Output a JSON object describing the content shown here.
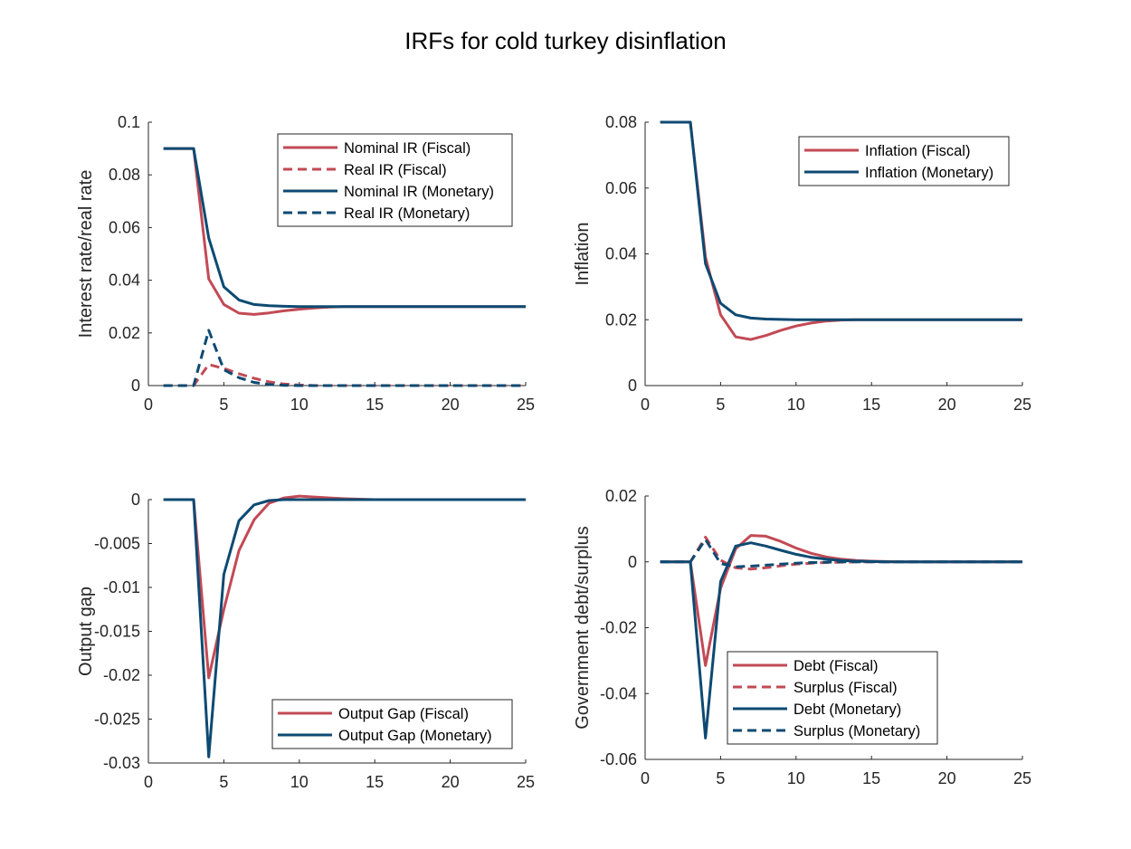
{
  "title": "IRFs for cold turkey disinflation",
  "colors": {
    "fiscal": "#c24a55",
    "monetary": "#0d4a72",
    "axis": "#262626",
    "background": "#ffffff"
  },
  "chart_data": [
    {
      "type": "line",
      "ylabel": "Interest rate/real rate",
      "xlim": [
        0,
        25
      ],
      "ylim": [
        0,
        0.1
      ],
      "xticks": [
        0,
        5,
        10,
        15,
        20,
        25
      ],
      "yticks": [
        0,
        0.02,
        0.04,
        0.06,
        0.08,
        0.1
      ],
      "ytick_labels": [
        "0",
        "0.02",
        "0.04",
        "0.06",
        "0.08",
        "0.1"
      ],
      "grid": false,
      "legend": "top-right",
      "x": [
        1,
        2,
        3,
        4,
        5,
        6,
        7,
        8,
        9,
        10,
        11,
        12,
        13,
        14,
        15,
        16,
        17,
        18,
        19,
        20,
        21,
        22,
        23,
        24,
        25
      ],
      "series": [
        {
          "name": "Nominal IR (Fiscal)",
          "color": "fiscal",
          "dash": false,
          "values": [
            0.09,
            0.09,
            0.09,
            0.0405,
            0.0308,
            0.0275,
            0.027,
            0.0276,
            0.0284,
            0.029,
            0.0295,
            0.0298,
            0.03,
            0.03,
            0.03,
            0.03,
            0.03,
            0.03,
            0.03,
            0.03,
            0.03,
            0.03,
            0.03,
            0.03,
            0.03
          ]
        },
        {
          "name": "Real IR (Fiscal)",
          "color": "fiscal",
          "dash": true,
          "values": [
            0,
            0,
            0,
            0.008,
            0.0065,
            0.0045,
            0.0028,
            0.0014,
            0.0006,
            0.0002,
            0,
            0,
            0,
            0,
            0,
            0,
            0,
            0,
            0,
            0,
            0,
            0,
            0,
            0,
            0
          ]
        },
        {
          "name": "Nominal IR (Monetary)",
          "color": "monetary",
          "dash": false,
          "values": [
            0.09,
            0.09,
            0.09,
            0.056,
            0.0375,
            0.0325,
            0.0308,
            0.0303,
            0.0301,
            0.03,
            0.03,
            0.03,
            0.03,
            0.03,
            0.03,
            0.03,
            0.03,
            0.03,
            0.03,
            0.03,
            0.03,
            0.03,
            0.03,
            0.03,
            0.03
          ]
        },
        {
          "name": "Real IR (Monetary)",
          "color": "monetary",
          "dash": true,
          "values": [
            0,
            0,
            0,
            0.021,
            0.006,
            0.003,
            0.0012,
            0.0004,
            0.0001,
            0,
            0,
            0,
            0,
            0,
            0,
            0,
            0,
            0,
            0,
            0,
            0,
            0,
            0,
            0,
            0
          ]
        }
      ]
    },
    {
      "type": "line",
      "ylabel": "Inflation",
      "xlim": [
        0,
        25
      ],
      "ylim": [
        0,
        0.08
      ],
      "xticks": [
        0,
        5,
        10,
        15,
        20,
        25
      ],
      "yticks": [
        0,
        0.02,
        0.04,
        0.06,
        0.08
      ],
      "ytick_labels": [
        "0",
        "0.02",
        "0.04",
        "0.06",
        "0.08"
      ],
      "grid": false,
      "legend": "top-right",
      "x": [
        1,
        2,
        3,
        4,
        5,
        6,
        7,
        8,
        9,
        10,
        11,
        12,
        13,
        14,
        15,
        16,
        17,
        18,
        19,
        20,
        21,
        22,
        23,
        24,
        25
      ],
      "series": [
        {
          "name": "Inflation (Fiscal)",
          "color": "fiscal",
          "dash": false,
          "values": [
            0.08,
            0.08,
            0.08,
            0.039,
            0.0215,
            0.0148,
            0.014,
            0.0152,
            0.0168,
            0.0181,
            0.019,
            0.0196,
            0.0199,
            0.02,
            0.02,
            0.02,
            0.02,
            0.02,
            0.02,
            0.02,
            0.02,
            0.02,
            0.02,
            0.02,
            0.02
          ]
        },
        {
          "name": "Inflation (Monetary)",
          "color": "monetary",
          "dash": false,
          "values": [
            0.08,
            0.08,
            0.08,
            0.037,
            0.025,
            0.0215,
            0.0205,
            0.0202,
            0.0201,
            0.02,
            0.02,
            0.02,
            0.02,
            0.02,
            0.02,
            0.02,
            0.02,
            0.02,
            0.02,
            0.02,
            0.02,
            0.02,
            0.02,
            0.02,
            0.02
          ]
        }
      ]
    },
    {
      "type": "line",
      "ylabel": "Output gap",
      "xlim": [
        0,
        25
      ],
      "ylim": [
        -0.03,
        0
      ],
      "xticks": [
        0,
        5,
        10,
        15,
        20,
        25
      ],
      "yticks": [
        -0.03,
        -0.025,
        -0.02,
        -0.015,
        -0.01,
        -0.005,
        0
      ],
      "ytick_labels": [
        "-0.03",
        "-0.025",
        "-0.02",
        "-0.015",
        "-0.01",
        "-0.005",
        "0"
      ],
      "grid": false,
      "legend": "bottom-right",
      "x": [
        1,
        2,
        3,
        4,
        5,
        6,
        7,
        8,
        9,
        10,
        11,
        12,
        13,
        14,
        15,
        16,
        17,
        18,
        19,
        20,
        21,
        22,
        23,
        24,
        25
      ],
      "series": [
        {
          "name": "Output Gap (Fiscal)",
          "color": "fiscal",
          "dash": false,
          "values": [
            0,
            0,
            0,
            -0.0203,
            -0.0125,
            -0.0058,
            -0.0023,
            -0.0004,
            0.0002,
            0.0004,
            0.0003,
            0.0002,
            0.0001,
            5e-05,
            0,
            0,
            0,
            0,
            0,
            0,
            0,
            0,
            0,
            0,
            0
          ]
        },
        {
          "name": "Output Gap (Monetary)",
          "color": "monetary",
          "dash": false,
          "values": [
            0,
            0,
            0,
            -0.0293,
            -0.0085,
            -0.0024,
            -0.0006,
            -0.0001,
            0,
            0,
            0,
            0,
            0,
            0,
            0,
            0,
            0,
            0,
            0,
            0,
            0,
            0,
            0,
            0,
            0
          ]
        }
      ]
    },
    {
      "type": "line",
      "ylabel": "Government debt/surplus",
      "xlim": [
        0,
        25
      ],
      "ylim": [
        -0.06,
        0.02
      ],
      "xticks": [
        0,
        5,
        10,
        15,
        20,
        25
      ],
      "yticks": [
        -0.06,
        -0.04,
        -0.02,
        0,
        0.02
      ],
      "ytick_labels": [
        "-0.06",
        "-0.04",
        "-0.02",
        "0",
        "0.02"
      ],
      "grid": false,
      "legend": "bottom-right",
      "x": [
        1,
        2,
        3,
        4,
        5,
        6,
        7,
        8,
        9,
        10,
        11,
        12,
        13,
        14,
        15,
        16,
        17,
        18,
        19,
        20,
        21,
        22,
        23,
        24,
        25
      ],
      "series": [
        {
          "name": "Debt (Fiscal)",
          "color": "fiscal",
          "dash": false,
          "values": [
            0,
            0,
            0,
            -0.0315,
            -0.008,
            0.004,
            0.008,
            0.0078,
            0.0062,
            0.0042,
            0.0026,
            0.0015,
            0.0008,
            0.0004,
            0.0002,
            0.0001,
            0,
            0,
            0,
            0,
            0,
            0,
            0,
            0,
            0
          ]
        },
        {
          "name": "Surplus (Fiscal)",
          "color": "fiscal",
          "dash": true,
          "values": [
            0,
            0,
            0,
            0.0075,
            0.0005,
            -0.0018,
            -0.0022,
            -0.0018,
            -0.0012,
            -0.0007,
            -0.0004,
            -0.0002,
            -0.0001,
            0,
            0,
            0,
            0,
            0,
            0,
            0,
            0,
            0,
            0,
            0,
            0
          ]
        },
        {
          "name": "Debt (Monetary)",
          "color": "monetary",
          "dash": false,
          "values": [
            0,
            0,
            0,
            -0.0535,
            -0.006,
            0.0048,
            0.0058,
            0.0048,
            0.0035,
            0.0023,
            0.0014,
            0.0008,
            0.0004,
            0.0002,
            0.0001,
            0,
            0,
            0,
            0,
            0,
            0,
            0,
            0,
            0,
            0
          ]
        },
        {
          "name": "Surplus (Monetary)",
          "color": "monetary",
          "dash": true,
          "values": [
            0,
            0,
            0,
            0.0068,
            -0.0005,
            -0.0015,
            -0.0013,
            -0.001,
            -0.0007,
            -0.0004,
            -0.0002,
            -0.0001,
            0,
            0,
            0,
            0,
            0,
            0,
            0,
            0,
            0,
            0,
            0,
            0,
            0
          ]
        }
      ]
    }
  ]
}
